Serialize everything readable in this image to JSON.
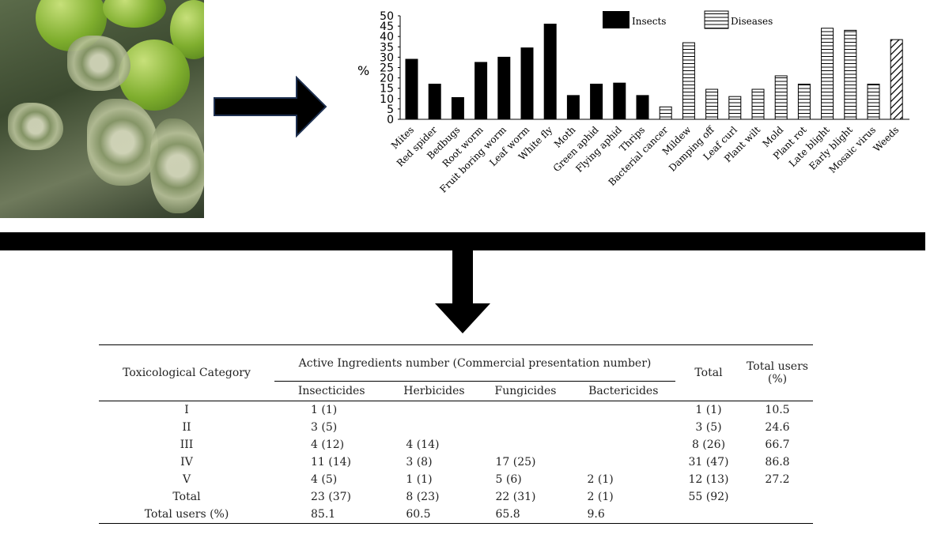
{
  "chart_data": {
    "type": "bar",
    "ylabel": "%",
    "ylim": [
      0,
      50
    ],
    "yticks": [
      0,
      5,
      10,
      15,
      20,
      25,
      30,
      35,
      40,
      45,
      50
    ],
    "legend": [
      {
        "name": "Insects",
        "pattern": "solid"
      },
      {
        "name": "Diseases",
        "pattern": "horizontal-lines"
      }
    ],
    "legend_position": "top-right",
    "categories": [
      "Mites",
      "Red spider",
      "Bedbugs",
      "Root worm",
      "Fruit boring worm",
      "Leaf worm",
      "White fly",
      "Moth",
      "Green aphid",
      "Flying aphid",
      "Thrips",
      "Bacterial cancer",
      "Mildew",
      "Damping off",
      "Leaf curl",
      "Plant wilt",
      "Mold",
      "Plant rot",
      "Late blight",
      "Early blight",
      "Mosaic virus",
      "Weeds"
    ],
    "values": [
      29,
      17,
      10.5,
      27.5,
      30,
      34.5,
      46,
      11.5,
      17,
      17.5,
      11.5,
      6,
      37,
      14.5,
      11,
      14.5,
      21,
      17,
      44,
      43,
      17,
      38.5
    ],
    "groups": [
      "insect",
      "insect",
      "insect",
      "insect",
      "insect",
      "insect",
      "insect",
      "insect",
      "insect",
      "insect",
      "insect",
      "disease",
      "disease",
      "disease",
      "disease",
      "disease",
      "disease",
      "disease",
      "disease",
      "disease",
      "disease",
      "weed"
    ]
  },
  "table": {
    "header_category": "Toxicological Category",
    "header_group": "Active Ingredients number (Commercial presentation number)",
    "header_total": "Total",
    "header_users": "Total users (%)",
    "subheaders": [
      "Insecticides",
      "Herbicides",
      "Fungicides",
      "Bactericides"
    ],
    "rows": [
      [
        "I",
        "1 (1)",
        "",
        "",
        "",
        "1 (1)",
        "10.5"
      ],
      [
        "II",
        "3 (5)",
        "",
        "",
        "",
        "3 (5)",
        "24.6"
      ],
      [
        "III",
        "4 (12)",
        "4 (14)",
        "",
        "",
        "8 (26)",
        "66.7"
      ],
      [
        "IV",
        "11 (14)",
        "3 (8)",
        "17 (25)",
        "",
        "31 (47)",
        "86.8"
      ],
      [
        "V",
        "4 (5)",
        "1 (1)",
        "5 (6)",
        "2 (1)",
        "12 (13)",
        "27.2"
      ],
      [
        "Total",
        "23 (37)",
        "8 (23)",
        "22 (31)",
        "2 (1)",
        "55 (92)",
        ""
      ],
      [
        "Total users (%)",
        "85.1",
        "60.5",
        "65.8",
        "9.6",
        "",
        ""
      ]
    ]
  }
}
